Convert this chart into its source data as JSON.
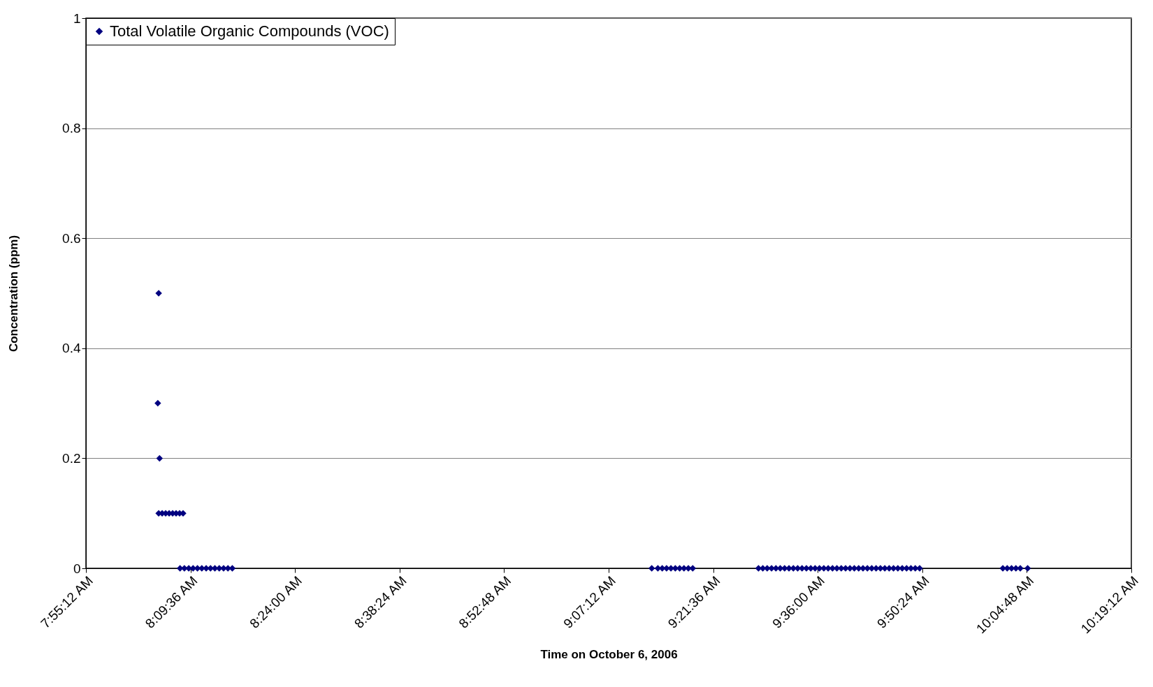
{
  "chart_data": {
    "type": "scatter",
    "xlabel": "Time on October 6, 2006",
    "ylabel": "Concentration (ppm)",
    "xlim": [
      7.92,
      10.32
    ],
    "xticks": [
      {
        "value": 7.92,
        "label": "7:55:12 AM"
      },
      {
        "value": 8.16,
        "label": "8:09:36 AM"
      },
      {
        "value": 8.4,
        "label": "8:24:00 AM"
      },
      {
        "value": 8.64,
        "label": "8:38:24 AM"
      },
      {
        "value": 8.88,
        "label": "8:52:48 AM"
      },
      {
        "value": 9.12,
        "label": "9:07:12 AM"
      },
      {
        "value": 9.36,
        "label": "9:21:36 AM"
      },
      {
        "value": 9.6,
        "label": "9:36:00 AM"
      },
      {
        "value": 9.84,
        "label": "9:50:24 AM"
      },
      {
        "value": 10.08,
        "label": "10:04:48 AM"
      },
      {
        "value": 10.32,
        "label": "10:19:12 AM"
      }
    ],
    "ylim": [
      0,
      1
    ],
    "yticks": [
      0,
      0.2,
      0.4,
      0.6,
      0.8,
      1
    ],
    "grid": "y",
    "legend": "top left",
    "marker": "diamond",
    "series": [
      {
        "name": "Total Volatile Organic Compounds (VOC)",
        "color": "#000080",
        "x": [
          8.087,
          8.085,
          8.089,
          8.087,
          8.095,
          8.103,
          8.111,
          8.119,
          8.127,
          8.135,
          8.143,
          8.136,
          8.146,
          8.156,
          8.166,
          8.176,
          8.186,
          8.196,
          8.206,
          8.216,
          8.226,
          8.236,
          8.246,
          8.256,
          9.219,
          9.233,
          9.243,
          9.253,
          9.263,
          9.273,
          9.283,
          9.293,
          9.303,
          9.313,
          9.464,
          9.474,
          9.484,
          9.494,
          9.504,
          9.514,
          9.524,
          9.534,
          9.544,
          9.554,
          9.564,
          9.574,
          9.584,
          9.594,
          9.604,
          9.614,
          9.624,
          9.634,
          9.644,
          9.654,
          9.664,
          9.674,
          9.684,
          9.694,
          9.704,
          9.714,
          9.724,
          9.734,
          9.744,
          9.754,
          9.764,
          9.774,
          9.784,
          9.794,
          9.804,
          9.814,
          9.824,
          9.834,
          10.025,
          10.035,
          10.045,
          10.055,
          10.065,
          10.082
        ],
        "values": [
          0.5,
          0.3,
          0.2,
          0.1,
          0.1,
          0.1,
          0.1,
          0.1,
          0.1,
          0.1,
          0.1,
          0,
          0,
          0,
          0,
          0,
          0,
          0,
          0,
          0,
          0,
          0,
          0,
          0,
          0,
          0,
          0,
          0,
          0,
          0,
          0,
          0,
          0,
          0,
          0,
          0,
          0,
          0,
          0,
          0,
          0,
          0,
          0,
          0,
          0,
          0,
          0,
          0,
          0,
          0,
          0,
          0,
          0,
          0,
          0,
          0,
          0,
          0,
          0,
          0,
          0,
          0,
          0,
          0,
          0,
          0,
          0,
          0,
          0,
          0,
          0,
          0,
          0,
          0,
          0,
          0,
          0,
          0
        ]
      }
    ]
  }
}
